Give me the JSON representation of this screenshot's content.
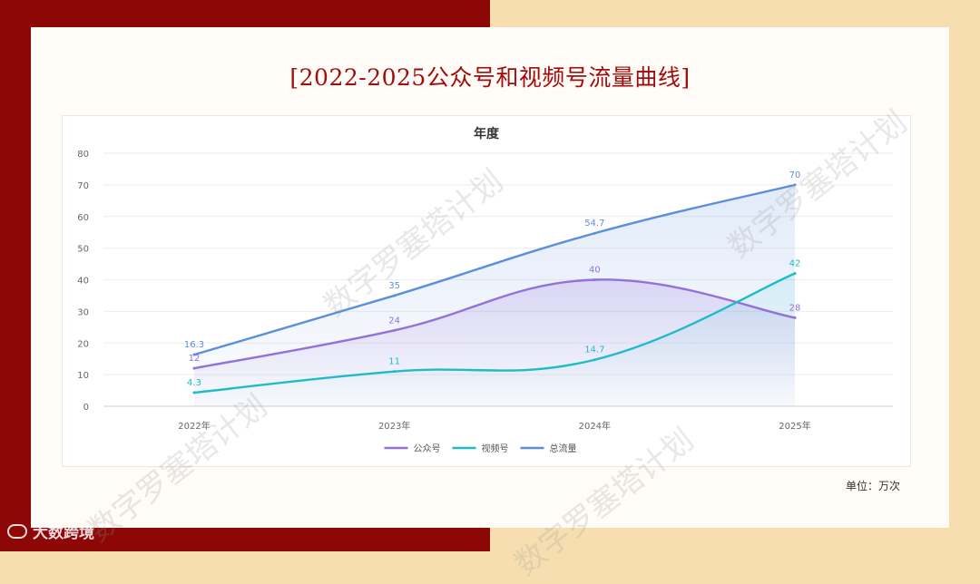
{
  "page": {
    "title": "[2022-2025公众号和视频号流量曲线]",
    "unit": "单位：万次",
    "watermark": "数字罗塞塔计划",
    "footer_brand": "大数跨境"
  },
  "colors": {
    "left_bg": "#8e0707",
    "right_bg": "#f7deb0",
    "title": "#a10d0d",
    "gzh": "#9370db",
    "sph": "#1fbcc8",
    "total": "#5b8fdd"
  },
  "chart_data": {
    "type": "line",
    "title": "年度",
    "categories": [
      "2022年",
      "2023年",
      "2024年",
      "2025年"
    ],
    "ylim": [
      0,
      80
    ],
    "yticks": [
      0,
      10,
      20,
      30,
      40,
      50,
      60,
      70,
      80
    ],
    "grid": true,
    "legend_position": "bottom",
    "smooth": true,
    "series": [
      {
        "name": "公众号",
        "values": [
          12,
          24,
          40,
          28
        ],
        "color": "#9370db"
      },
      {
        "name": "视频号",
        "values": [
          4.3,
          11,
          14.7,
          42
        ],
        "color": "#1fbcc8"
      },
      {
        "name": "总流量",
        "values": [
          16.3,
          35,
          54.7,
          70
        ],
        "color": "#5b8fdd"
      }
    ]
  }
}
